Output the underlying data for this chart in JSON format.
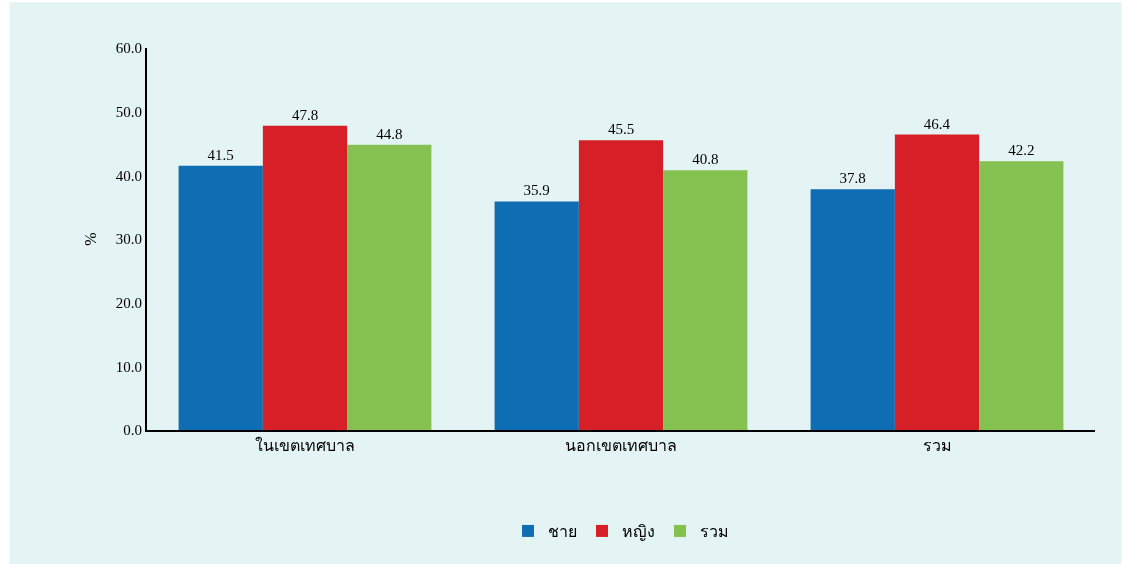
{
  "chart_data": {
    "type": "bar",
    "categories": [
      "ในเขตเทศบาล",
      "นอกเขตเทศบาล",
      "รวม"
    ],
    "ylabel": "%",
    "series": [
      {
        "name": "ชาย",
        "color": "#0f6db4",
        "values": [
          41.5,
          35.9,
          37.8
        ]
      },
      {
        "name": "หญิง",
        "color": "#d61f26",
        "values": [
          47.8,
          45.5,
          46.4
        ]
      },
      {
        "name": "รวม",
        "color": "#84c151",
        "values": [
          44.8,
          40.8,
          42.2
        ]
      }
    ],
    "ylim": [
      0,
      60
    ],
    "yticks": [
      {
        "value": 0,
        "label": "0.0"
      },
      {
        "value": 10,
        "label": "10.0"
      },
      {
        "value": 20,
        "label": "20.0"
      },
      {
        "value": 30,
        "label": "30.0"
      },
      {
        "value": 40,
        "label": "40.0"
      },
      {
        "value": 50,
        "label": "50.0"
      },
      {
        "value": 60,
        "label": "60.0"
      }
    ],
    "data_labels": true,
    "grid": false,
    "legend": "bottom"
  }
}
